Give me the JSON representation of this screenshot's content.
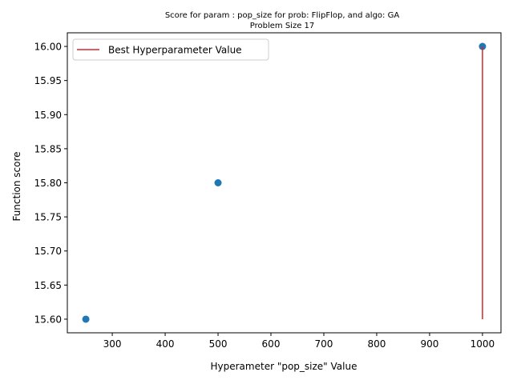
{
  "chart_data": {
    "type": "scatter",
    "title": "Score for param : pop_size for prob: FlipFlop, and algo: GA",
    "subtitle": "Problem Size 17",
    "xlabel": "Hyperameter \"pop_size\" Value",
    "ylabel": "Function score",
    "xlim": [
      215,
      1035
    ],
    "ylim": [
      15.58,
      16.02
    ],
    "xticks": [
      300,
      400,
      500,
      600,
      700,
      800,
      900,
      1000
    ],
    "yticks": [
      15.6,
      15.65,
      15.7,
      15.75,
      15.8,
      15.85,
      15.9,
      15.95,
      16.0
    ],
    "xtick_labels": [
      "300",
      "400",
      "500",
      "600",
      "700",
      "800",
      "900",
      "1000"
    ],
    "ytick_labels": [
      "15.60",
      "15.65",
      "15.70",
      "15.75",
      "15.80",
      "15.85",
      "15.90",
      "15.95",
      "16.00"
    ],
    "points": [
      {
        "x": 250,
        "y": 15.6
      },
      {
        "x": 500,
        "y": 15.8
      },
      {
        "x": 1000,
        "y": 16.0
      }
    ],
    "best_line": {
      "label": "Best Hyperparameter Value",
      "x": 1000,
      "y_from": 15.6,
      "y_to": 16.0
    },
    "grid": false,
    "legend_position": "upper-left",
    "colors": {
      "points": "#1f77b4",
      "best_line": "#d62728"
    }
  }
}
